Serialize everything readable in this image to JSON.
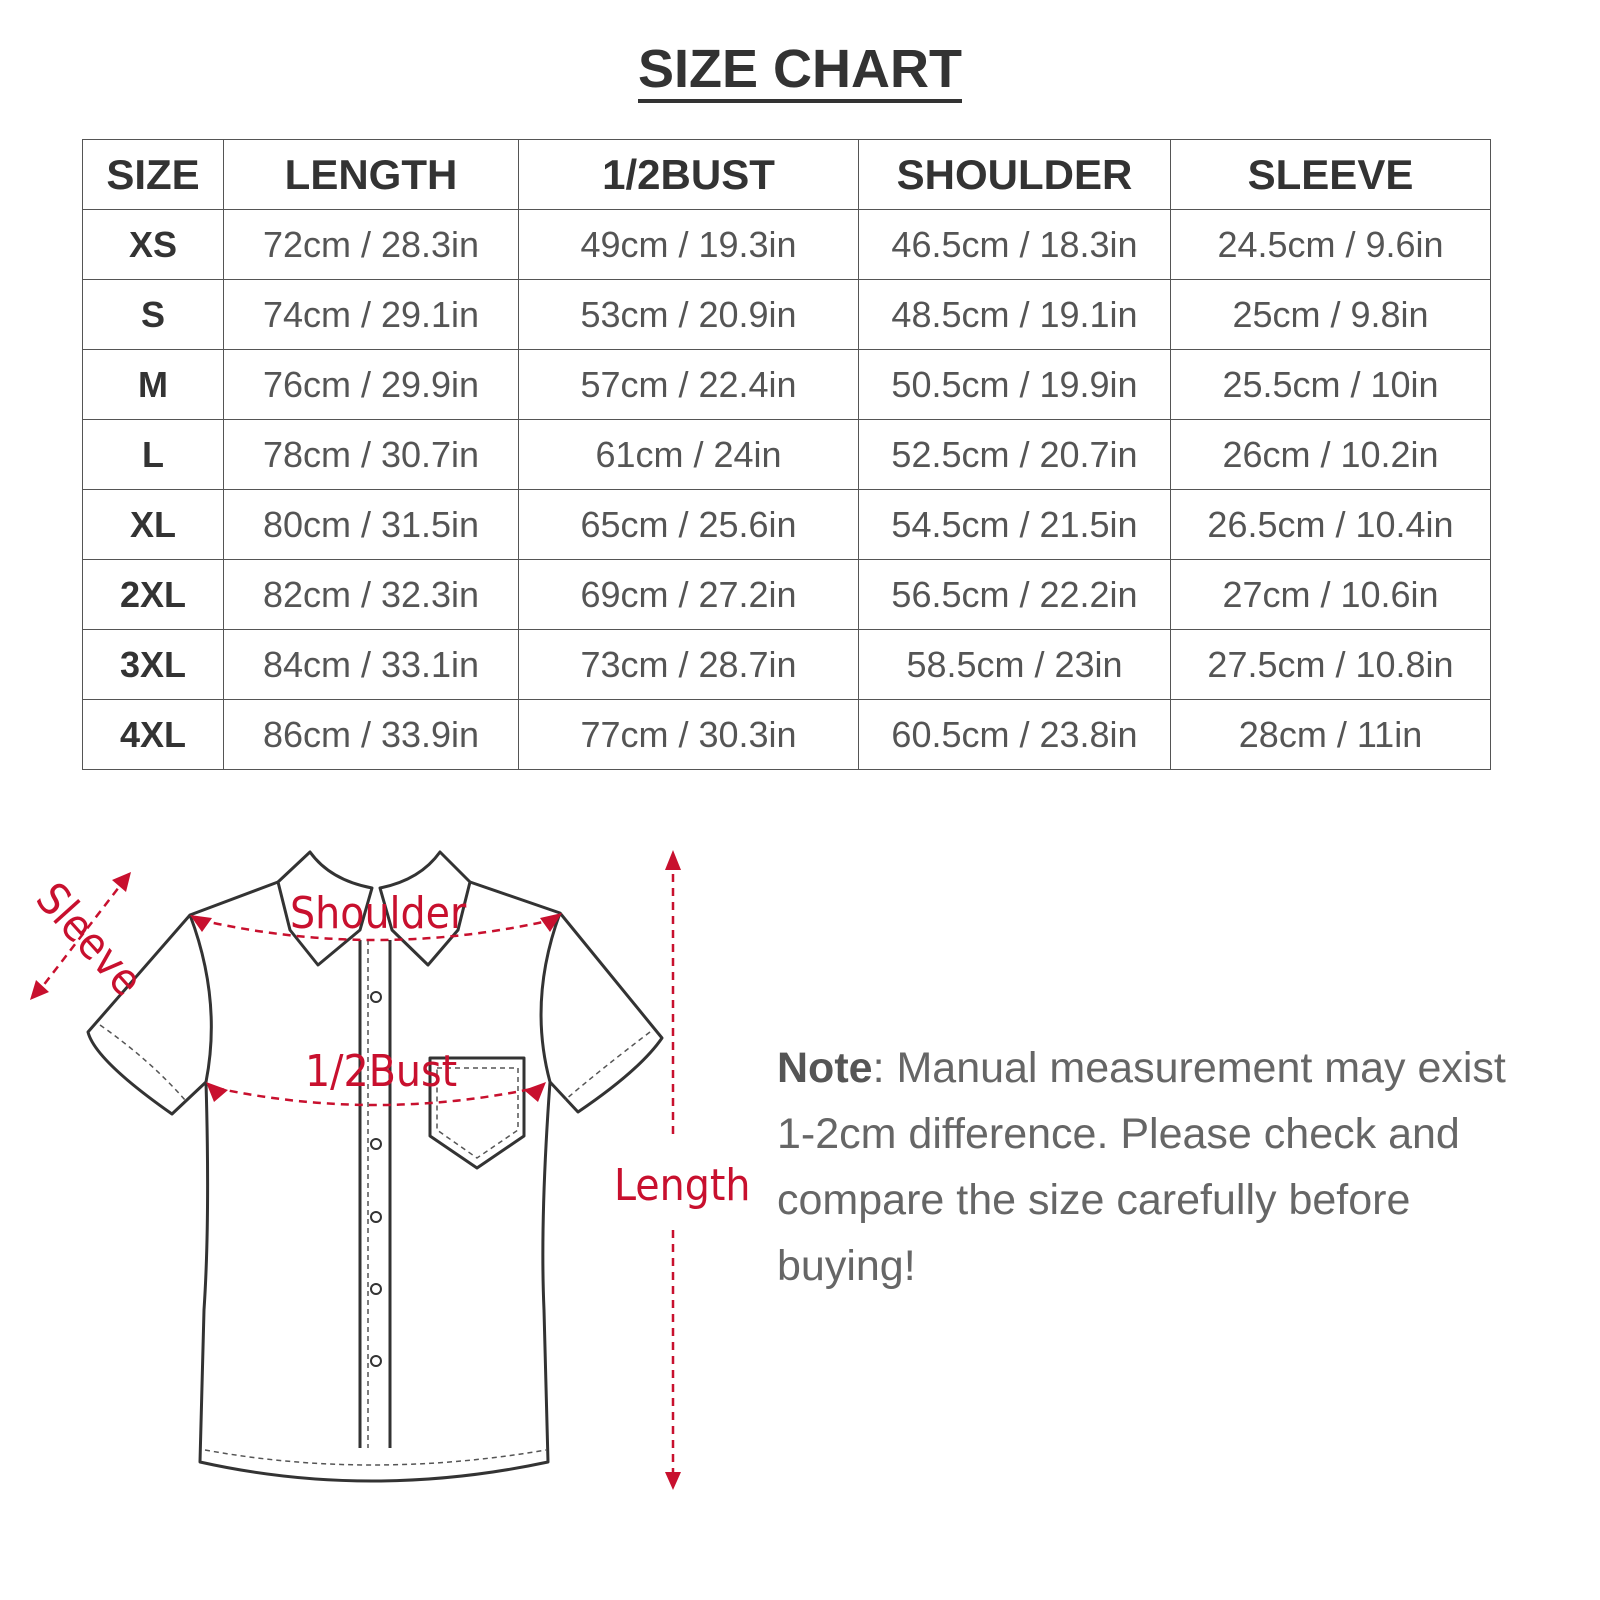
{
  "title": "SIZE CHART",
  "table": {
    "headers": [
      "SIZE",
      "LENGTH",
      "1/2BUST",
      "SHOULDER",
      "SLEEVE"
    ],
    "rows": [
      [
        "XS",
        "72cm / 28.3in",
        "49cm / 19.3in",
        "46.5cm / 18.3in",
        "24.5cm / 9.6in"
      ],
      [
        "S",
        "74cm / 29.1in",
        "53cm / 20.9in",
        "48.5cm / 19.1in",
        "25cm / 9.8in"
      ],
      [
        "M",
        "76cm / 29.9in",
        "57cm / 22.4in",
        "50.5cm / 19.9in",
        "25.5cm / 10in"
      ],
      [
        "L",
        "78cm / 30.7in",
        "61cm / 24in",
        "52.5cm / 20.7in",
        "26cm / 10.2in"
      ],
      [
        "XL",
        "80cm / 31.5in",
        "65cm / 25.6in",
        "54.5cm / 21.5in",
        "26.5cm / 10.4in"
      ],
      [
        "2XL",
        "82cm / 32.3in",
        "69cm / 27.2in",
        "56.5cm / 22.2in",
        "27cm / 10.6in"
      ],
      [
        "3XL",
        "84cm / 33.1in",
        "73cm / 28.7in",
        "58.5cm / 23in",
        "27.5cm / 10.8in"
      ],
      [
        "4XL",
        "86cm / 33.9in",
        "77cm / 30.3in",
        "60.5cm / 23.8in",
        "28cm / 11in"
      ]
    ]
  },
  "diagram": {
    "labels": {
      "sleeve": "Sleeve",
      "shoulder": "Shoulder",
      "bust": "1/2Bust",
      "length": "Length"
    },
    "accent_color": "#c8102e"
  },
  "note": {
    "label": "Note",
    "text": ": Manual measurement may exist 1-2cm difference. Please check and compare the size carefully before buying!"
  }
}
